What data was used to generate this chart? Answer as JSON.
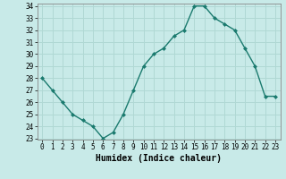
{
  "x": [
    0,
    1,
    2,
    3,
    4,
    5,
    6,
    7,
    8,
    9,
    10,
    11,
    12,
    13,
    14,
    15,
    16,
    17,
    18,
    19,
    20,
    21,
    22,
    23
  ],
  "y": [
    28,
    27,
    26,
    25,
    24.5,
    24,
    23,
    23.5,
    25,
    27,
    29,
    30,
    30.5,
    31.5,
    32,
    34,
    34,
    33,
    32.5,
    32,
    30.5,
    29,
    26.5,
    26.5
  ],
  "xlabel": "Humidex (Indice chaleur)",
  "ylim": [
    23,
    34
  ],
  "xlim": [
    -0.5,
    23.5
  ],
  "yticks": [
    23,
    24,
    25,
    26,
    27,
    28,
    29,
    30,
    31,
    32,
    33,
    34
  ],
  "xticks": [
    0,
    1,
    2,
    3,
    4,
    5,
    6,
    7,
    8,
    9,
    10,
    11,
    12,
    13,
    14,
    15,
    16,
    17,
    18,
    19,
    20,
    21,
    22,
    23
  ],
  "line_color": "#1a7a6e",
  "marker": "D",
  "marker_size": 2.0,
  "bg_color": "#c8eae8",
  "grid_color": "#b0d8d4",
  "line_width": 1.0,
  "tick_fontsize": 5.5,
  "xlabel_fontsize": 7.0
}
